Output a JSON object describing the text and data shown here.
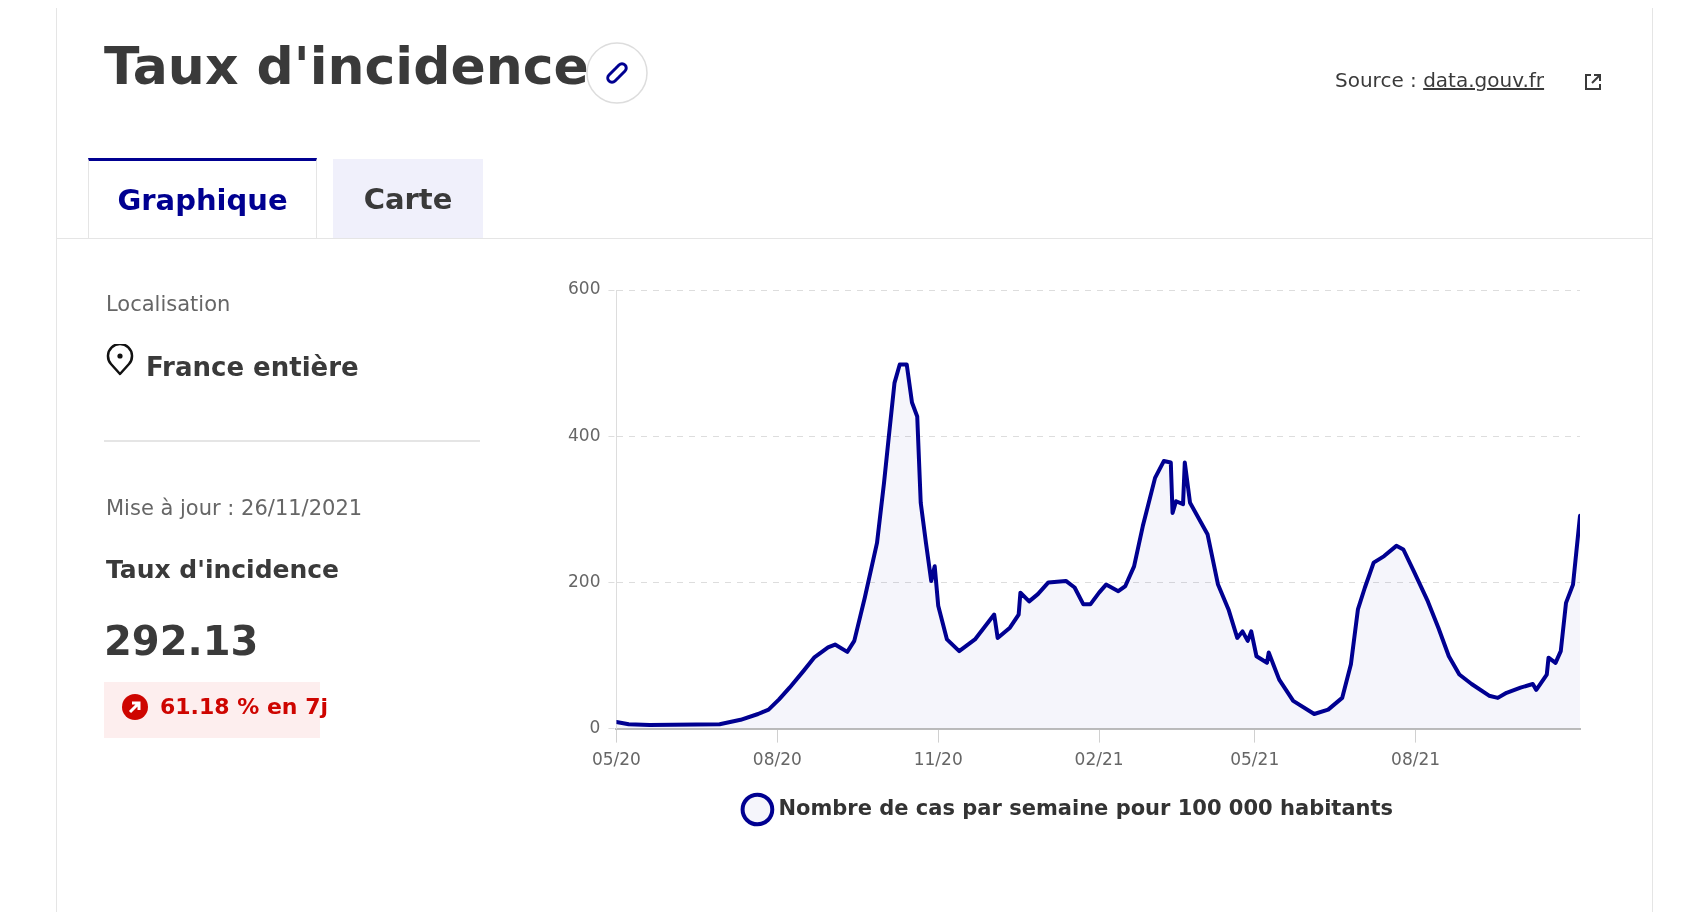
{
  "chart_data": {
    "type": "area",
    "title": "Taux d'incidence",
    "x": [
      "2020-05-01",
      "2020-05-08",
      "2020-05-20",
      "2020-06-29",
      "2020-07-11",
      "2020-07-21",
      "2020-07-27",
      "2020-08-02",
      "2020-08-08",
      "2020-08-16",
      "2020-08-22",
      "2020-08-30",
      "2020-09-03",
      "2020-09-10",
      "2020-09-14",
      "2020-09-20",
      "2020-09-27",
      "2020-10-01",
      "2020-10-04",
      "2020-10-07",
      "2020-10-10",
      "2020-10-14",
      "2020-10-17",
      "2020-10-20",
      "2020-10-22",
      "2020-10-25",
      "2020-10-28",
      "2020-10-30",
      "2020-11-01",
      "2020-11-06",
      "2020-11-13",
      "2020-11-22",
      "2020-12-03",
      "2020-12-05",
      "2020-12-12",
      "2020-12-17",
      "2020-12-18",
      "2020-12-23",
      "2020-12-28",
      "2021-01-03",
      "2021-01-13",
      "2021-01-18",
      "2021-01-23",
      "2021-01-27",
      "2021-02-01",
      "2021-02-05",
      "2021-02-12",
      "2021-02-16",
      "2021-02-21",
      "2021-02-26",
      "2021-03-05",
      "2021-03-10",
      "2021-03-14",
      "2021-03-15",
      "2021-03-17",
      "2021-03-21",
      "2021-03-22",
      "2021-03-25",
      "2021-04-04",
      "2021-04-10",
      "2021-04-16",
      "2021-04-21",
      "2021-04-24",
      "2021-04-27",
      "2021-04-29",
      "2021-05-02",
      "2021-05-08",
      "2021-05-09",
      "2021-05-15",
      "2021-05-23",
      "2021-06-04",
      "2021-06-12",
      "2021-06-20",
      "2021-06-25",
      "2021-06-29",
      "2021-07-03",
      "2021-07-08",
      "2021-07-14",
      "2021-07-21",
      "2021-07-25",
      "2021-07-31",
      "2021-08-08",
      "2021-08-14",
      "2021-08-20",
      "2021-08-26",
      "2021-09-02",
      "2021-09-12",
      "2021-09-17",
      "2021-09-22",
      "2021-09-30",
      "2021-10-07",
      "2021-10-09",
      "2021-10-15",
      "2021-10-16",
      "2021-10-20",
      "2021-10-23",
      "2021-10-26",
      "2021-10-30",
      "2021-11-03"
    ],
    "series": [
      {
        "name": "Nombre de cas par semaine pour 100 000 habitants",
        "color": "#000091",
        "values": [
          9,
          6,
          5,
          6,
          12,
          20,
          26,
          40,
          56,
          79,
          97,
          111,
          115,
          105,
          120,
          179,
          254,
          336,
          405,
          473,
          498,
          498,
          446,
          427,
          309,
          254,
          202,
          222,
          168,
          122,
          106,
          122,
          156,
          124,
          138,
          156,
          186,
          174,
          184,
          200,
          202,
          193,
          170,
          170,
          186,
          197,
          188,
          195,
          222,
          277,
          343,
          366,
          364,
          295,
          311,
          307,
          364,
          309,
          266,
          197,
          163,
          124,
          133,
          120,
          133,
          99,
          90,
          104,
          67,
          38,
          20,
          26,
          42,
          88,
          163,
          193,
          227,
          236,
          250,
          245,
          215,
          174,
          138,
          99,
          74,
          61,
          45,
          42,
          49,
          56,
          61,
          53,
          74,
          97,
          90,
          106,
          172,
          197,
          291
        ]
      }
    ],
    "xlim": [
      "2020-05-01",
      "2021-11-03"
    ],
    "xticks": [
      {
        "value": "2020-05",
        "label": "05/20"
      },
      {
        "value": "2020-08",
        "label": "08/20"
      },
      {
        "value": "2020-11",
        "label": "11/20"
      },
      {
        "value": "2021-02",
        "label": "02/21"
      },
      {
        "value": "2021-05",
        "label": "05/21"
      },
      {
        "value": "2021-08",
        "label": "08/21"
      }
    ],
    "ylim": [
      0,
      600
    ],
    "yticks": [
      0,
      200,
      400,
      600
    ],
    "grid": "y",
    "legend": "bottom",
    "marker": "none",
    "annotations": [
      "Source : data.gouv.fr",
      "Graphique",
      "Carte",
      "Localisation",
      "France entière",
      "Mise à jour : 26/11/2021",
      "Taux d'incidence",
      "292.13",
      "61.18 % en 7j"
    ]
  }
}
